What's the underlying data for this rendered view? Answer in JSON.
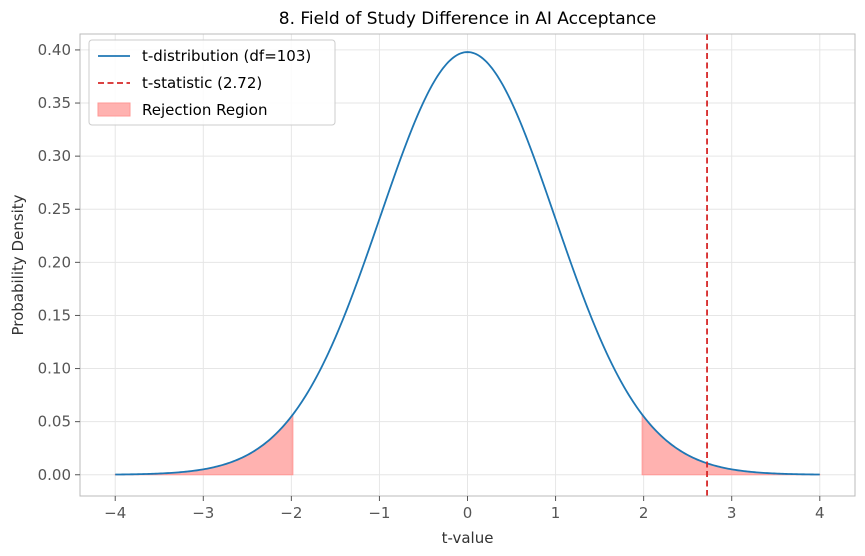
{
  "chart_data": {
    "type": "line",
    "title": "8. Field of Study Difference in AI Acceptance",
    "xlabel": "t-value",
    "ylabel": "Probability Density",
    "xlim": [
      -4.4,
      4.4
    ],
    "ylim": [
      -0.02,
      0.415
    ],
    "xticks": [
      -4,
      -3,
      -2,
      -1,
      0,
      1,
      2,
      3,
      4
    ],
    "xtick_labels": [
      "−4",
      "−3",
      "−2",
      "−1",
      "0",
      "1",
      "2",
      "3",
      "4"
    ],
    "yticks": [
      0.0,
      0.05,
      0.1,
      0.15,
      0.2,
      0.25,
      0.3,
      0.35,
      0.4
    ],
    "ytick_labels": [
      "0.00",
      "0.05",
      "0.10",
      "0.15",
      "0.20",
      "0.25",
      "0.30",
      "0.35",
      "0.40"
    ],
    "grid": true,
    "legend_position": "top-left",
    "df": 103,
    "curve_x_range": [
      -4,
      4
    ],
    "t_statistic": 2.72,
    "critical_value": 1.983,
    "series": [
      {
        "name": "t-distribution (df=103)",
        "kind": "line",
        "color": "#1f77b4"
      },
      {
        "name": "t-statistic (2.72)",
        "kind": "vline",
        "color": "#d62728",
        "x": 2.72
      },
      {
        "name": "Rejection Region",
        "kind": "fill",
        "color": "#ff9896",
        "regions": [
          [
            -4,
            -1.983
          ],
          [
            1.983,
            4
          ]
        ]
      }
    ]
  }
}
